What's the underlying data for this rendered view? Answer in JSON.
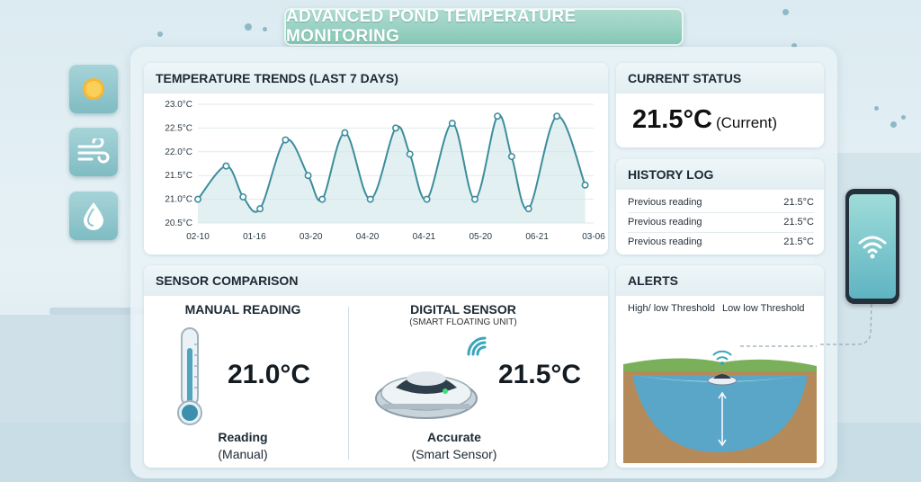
{
  "page_title": "ADVANCED POND TEMPERATURE MONITORING",
  "side_buttons": [
    {
      "icon": "sun-icon"
    },
    {
      "icon": "wind-icon"
    },
    {
      "icon": "water-drop-icon"
    }
  ],
  "trends": {
    "title": "TEMPERATURE TRENDS (LAST 7 DAYS)",
    "chart_data": {
      "type": "line",
      "title": "TEMPERATURE TRENDS (LAST 7 DAYS)",
      "y_ticks": [
        "23.0°C",
        "22.5°C",
        "22.0°C",
        "21.5°C",
        "21.0°C",
        "20.5°C"
      ],
      "ylim": [
        20.5,
        23.0
      ],
      "x_ticks": [
        "02-10",
        "01-16",
        "03-20",
        "04-20",
        "04-21",
        "05-20",
        "06-21",
        "03-06"
      ],
      "grid": true,
      "series": [
        {
          "color": "#3d8d9c",
          "fill": "#cfe6ea",
          "points": [
            [
              0,
              21.0
            ],
            [
              0.5,
              21.7
            ],
            [
              0.8,
              21.05
            ],
            [
              1.1,
              20.8
            ],
            [
              1.55,
              22.25
            ],
            [
              1.95,
              21.5
            ],
            [
              2.2,
              21.0
            ],
            [
              2.6,
              22.4
            ],
            [
              3.05,
              21.0
            ],
            [
              3.5,
              22.5
            ],
            [
              3.75,
              21.95
            ],
            [
              4.05,
              21.0
            ],
            [
              4.5,
              22.6
            ],
            [
              4.9,
              21.0
            ],
            [
              5.3,
              22.75
            ],
            [
              5.55,
              21.9
            ],
            [
              5.85,
              20.8
            ],
            [
              6.35,
              22.75
            ],
            [
              6.85,
              21.3
            ]
          ]
        }
      ]
    }
  },
  "current_status": {
    "title": "CURRENT STATUS",
    "value": "21.5°C",
    "note": "(Current)"
  },
  "history": {
    "title": "HISTORY LOG",
    "rows": [
      {
        "label": "Previous reading",
        "value": "21.5°C"
      },
      {
        "label": "Previous reading",
        "value": "21.5°C"
      },
      {
        "label": "Previous reading",
        "value": "21.5°C"
      }
    ]
  },
  "sensor_comparison": {
    "title": "SENSOR COMPARISON",
    "manual": {
      "title": "MANUAL READING",
      "value": "21.0°C",
      "caption_strong": "Reading",
      "caption": "(Manual)",
      "icon": "thermometer-icon"
    },
    "digital": {
      "title": "DIGITAL SENSOR",
      "subtitle": "(SMART FLOATING UNIT)",
      "value": "21.5°C",
      "caption_strong": "Accurate",
      "caption": "(Smart Sensor)",
      "icon": "floating-sensor-icon"
    }
  },
  "alerts": {
    "title": "ALERTS",
    "labels": [
      "High/ low Threshold",
      "Low low Threshold"
    ]
  },
  "phone": {
    "icon": "wifi-icon"
  }
}
